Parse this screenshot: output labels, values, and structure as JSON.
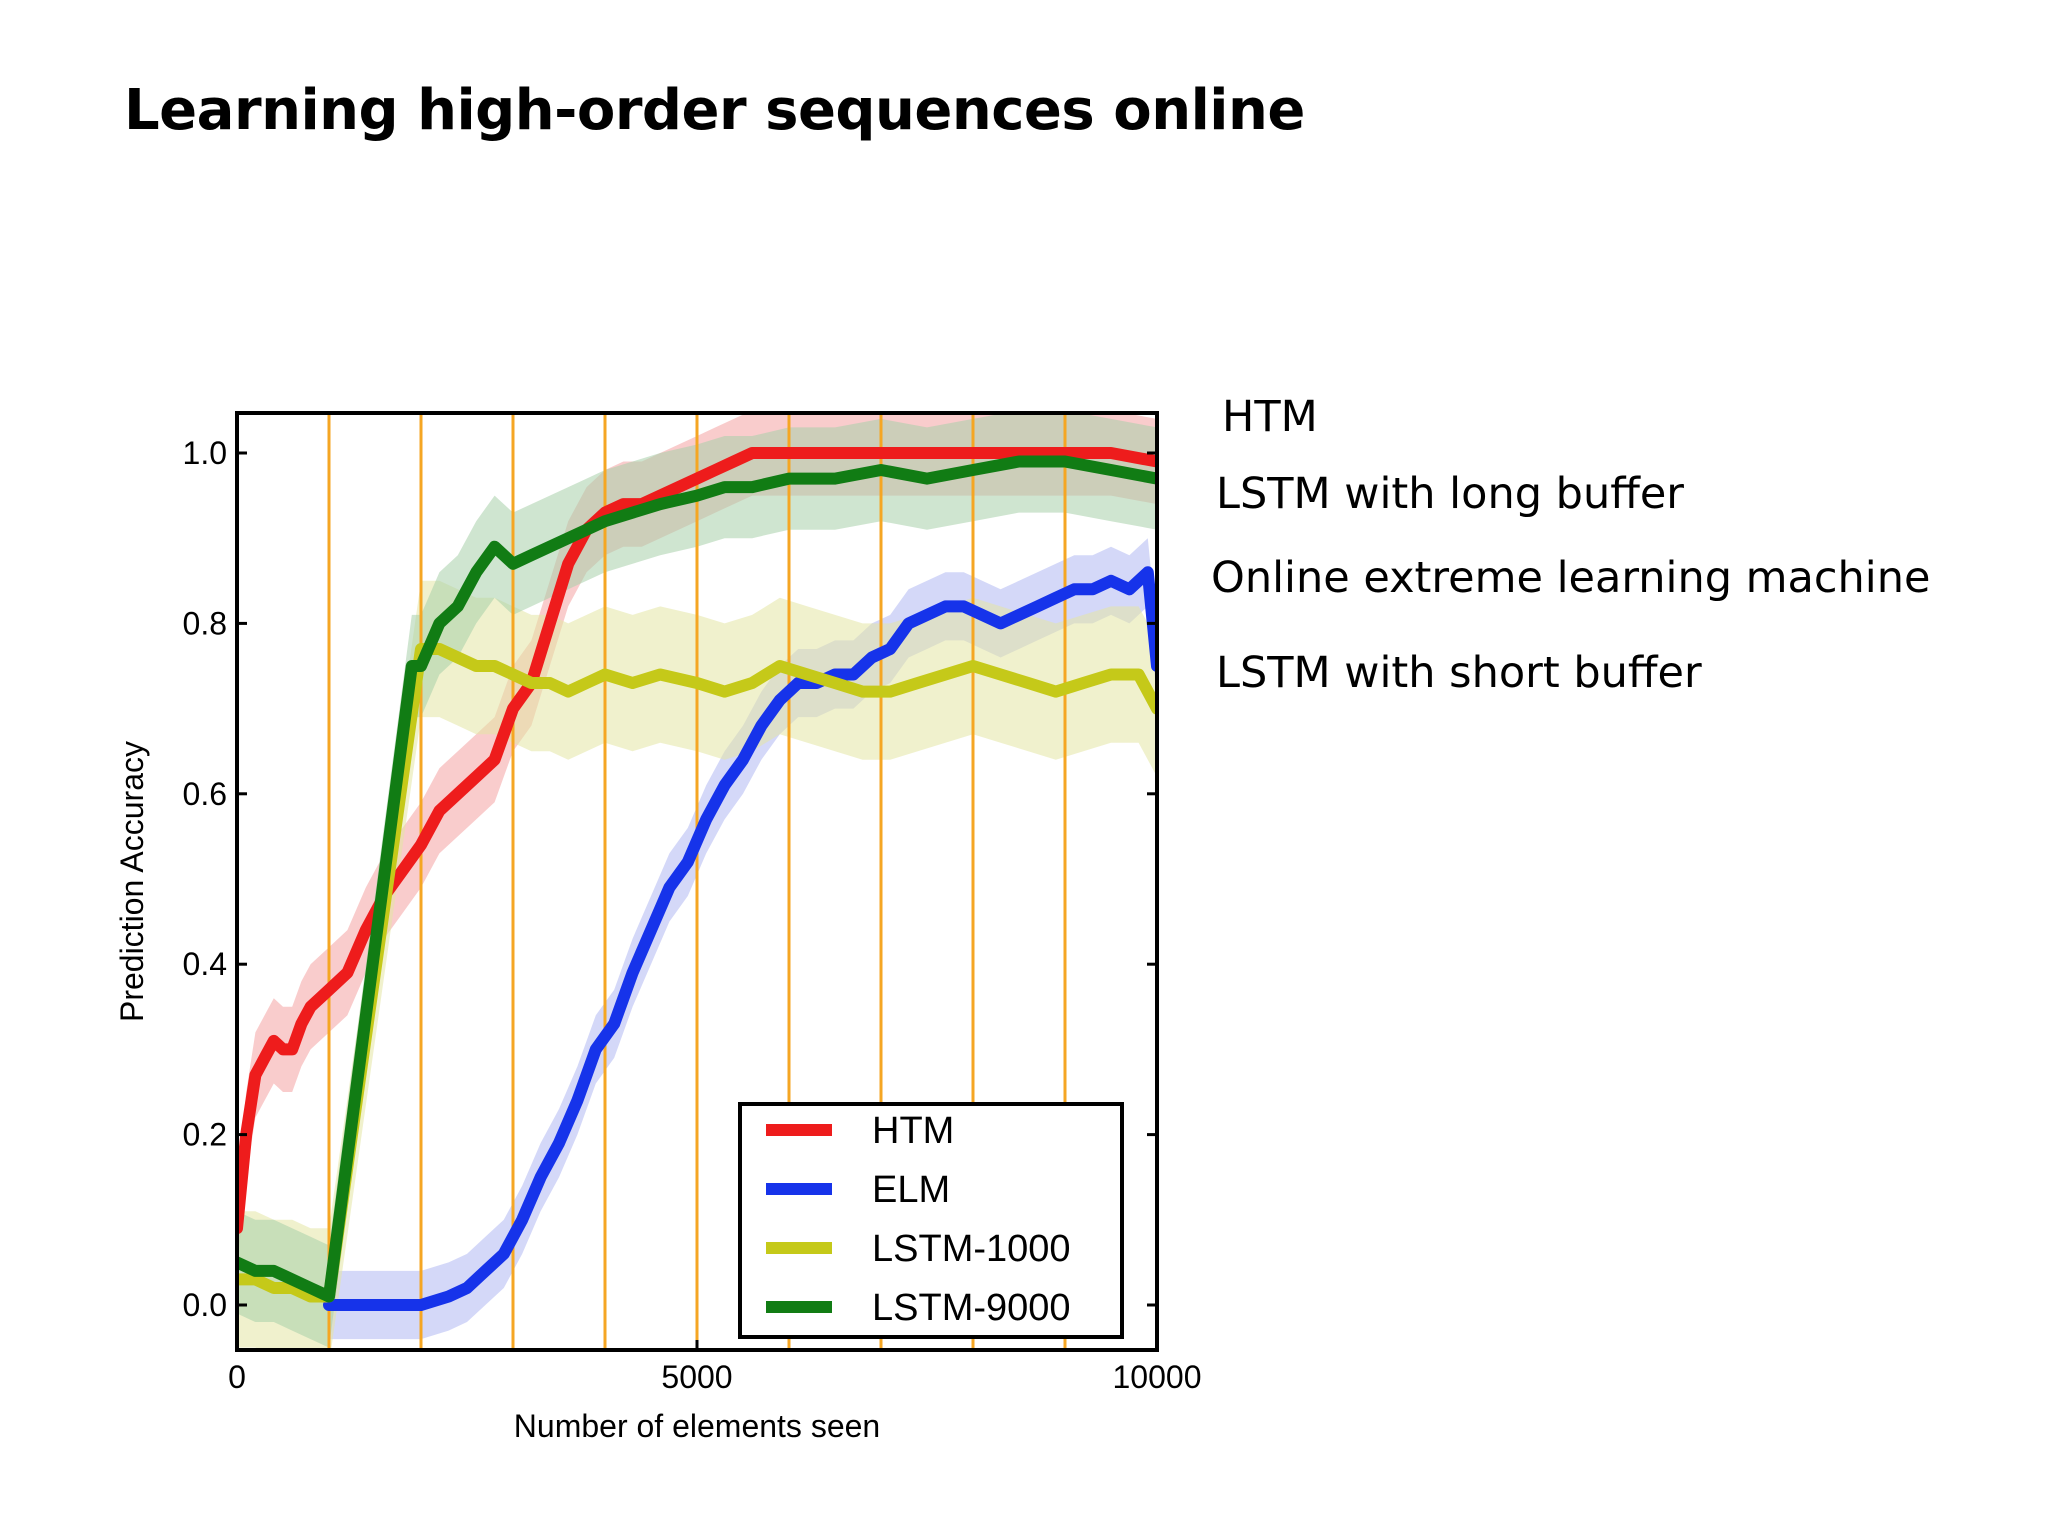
{
  "slide": {
    "title": "Learning high-order sequences online",
    "annotations": {
      "htm": "HTM",
      "lstm_long": "LSTM with long buffer",
      "elm": "Online extreme learning machine",
      "lstm_short": "LSTM with short buffer"
    }
  },
  "chart_data": {
    "type": "line",
    "title": "",
    "xlabel": "Number of elements seen",
    "ylabel": "Prediction Accuracy",
    "xlim": [
      0,
      10000
    ],
    "ylim": [
      -0.05,
      1.05
    ],
    "xticks": [
      0,
      5000,
      10000
    ],
    "xtick_labels": [
      "0",
      "5000",
      "10000"
    ],
    "yticks": [
      0.0,
      0.2,
      0.4,
      0.6,
      0.8,
      1.0
    ],
    "ytick_labels": [
      "0.0",
      "0.2",
      "0.4",
      "0.6",
      "0.8",
      "1.0"
    ],
    "vlines": [
      1000,
      2000,
      3000,
      4000,
      5000,
      6000,
      7000,
      8000,
      9000,
      10000
    ],
    "vline_color": "#f5a623",
    "grid": false,
    "legend_position": "lower right",
    "series": [
      {
        "name": "HTM",
        "color": "#ee1c1c",
        "band_color": "#f4a3a3",
        "band": 0.05,
        "x": [
          0,
          100,
          200,
          300,
          400,
          500,
          600,
          700,
          800,
          1000,
          1200,
          1400,
          1600,
          1800,
          2000,
          2200,
          2400,
          2600,
          2800,
          3000,
          3200,
          3400,
          3600,
          3800,
          4000,
          4200,
          4400,
          4600,
          4800,
          5000,
          5200,
          5400,
          5600,
          5800,
          6000,
          6500,
          7000,
          7500,
          8000,
          8500,
          9000,
          9500,
          10000
        ],
        "y": [
          0.09,
          0.2,
          0.27,
          0.29,
          0.31,
          0.3,
          0.3,
          0.33,
          0.35,
          0.37,
          0.39,
          0.44,
          0.48,
          0.51,
          0.54,
          0.58,
          0.6,
          0.62,
          0.64,
          0.7,
          0.73,
          0.8,
          0.87,
          0.91,
          0.93,
          0.94,
          0.94,
          0.95,
          0.96,
          0.97,
          0.98,
          0.99,
          1.0,
          1.0,
          1.0,
          1.0,
          1.0,
          1.0,
          1.0,
          1.0,
          1.0,
          1.0,
          0.99
        ]
      },
      {
        "name": "ELM",
        "color": "#1633ea",
        "band_color": "#b1b8f3",
        "band": 0.04,
        "x": [
          1000,
          1500,
          2000,
          2300,
          2500,
          2700,
          2900,
          3100,
          3300,
          3500,
          3700,
          3900,
          4100,
          4300,
          4500,
          4700,
          4900,
          5100,
          5300,
          5500,
          5700,
          5900,
          6100,
          6300,
          6500,
          6700,
          6900,
          7100,
          7300,
          7500,
          7700,
          7900,
          8100,
          8300,
          8500,
          8700,
          8900,
          9100,
          9300,
          9500,
          9700,
          9900,
          10000
        ],
        "y": [
          0.0,
          0.0,
          0.0,
          0.01,
          0.02,
          0.04,
          0.06,
          0.1,
          0.15,
          0.19,
          0.24,
          0.3,
          0.33,
          0.39,
          0.44,
          0.49,
          0.52,
          0.57,
          0.61,
          0.64,
          0.68,
          0.71,
          0.73,
          0.73,
          0.74,
          0.74,
          0.76,
          0.77,
          0.8,
          0.81,
          0.82,
          0.82,
          0.81,
          0.8,
          0.81,
          0.82,
          0.83,
          0.84,
          0.84,
          0.85,
          0.84,
          0.86,
          0.75
        ]
      },
      {
        "name": "LSTM-1000",
        "color": "#c5c919",
        "band_color": "#e3e6a4",
        "band": 0.08,
        "x": [
          0,
          200,
          400,
          600,
          800,
          1000,
          2000,
          2200,
          2400,
          2600,
          2800,
          3000,
          3200,
          3400,
          3600,
          3800,
          4000,
          4300,
          4600,
          5000,
          5300,
          5600,
          5900,
          6200,
          6500,
          6800,
          7100,
          7400,
          7700,
          8000,
          8300,
          8600,
          8900,
          9200,
          9500,
          9800,
          10000
        ],
        "y": [
          0.03,
          0.03,
          0.02,
          0.02,
          0.01,
          0.01,
          0.77,
          0.77,
          0.76,
          0.75,
          0.75,
          0.74,
          0.73,
          0.73,
          0.72,
          0.73,
          0.74,
          0.73,
          0.74,
          0.73,
          0.72,
          0.73,
          0.75,
          0.74,
          0.73,
          0.72,
          0.72,
          0.73,
          0.74,
          0.75,
          0.74,
          0.73,
          0.72,
          0.73,
          0.74,
          0.74,
          0.7
        ]
      },
      {
        "name": "LSTM-9000",
        "color": "#117c14",
        "band_color": "#a8cfa9",
        "band": 0.06,
        "x": [
          0,
          200,
          400,
          600,
          800,
          1000,
          1900,
          2000,
          2200,
          2400,
          2600,
          2800,
          2900,
          3000,
          3200,
          3400,
          3600,
          3800,
          4000,
          4300,
          4600,
          5000,
          5300,
          5600,
          6000,
          6500,
          7000,
          7500,
          8000,
          8500,
          9000,
          9500,
          10000
        ],
        "y": [
          0.05,
          0.04,
          0.04,
          0.03,
          0.02,
          0.01,
          0.75,
          0.75,
          0.8,
          0.82,
          0.86,
          0.89,
          0.88,
          0.87,
          0.88,
          0.89,
          0.9,
          0.91,
          0.92,
          0.93,
          0.94,
          0.95,
          0.96,
          0.96,
          0.97,
          0.97,
          0.98,
          0.97,
          0.98,
          0.99,
          0.99,
          0.98,
          0.97
        ]
      }
    ]
  }
}
